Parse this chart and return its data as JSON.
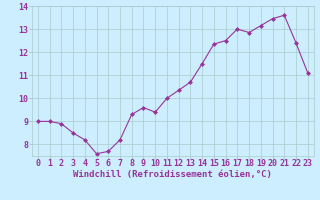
{
  "x": [
    0,
    1,
    2,
    3,
    4,
    5,
    6,
    7,
    8,
    9,
    10,
    11,
    12,
    13,
    14,
    15,
    16,
    17,
    18,
    19,
    20,
    21,
    22,
    23
  ],
  "y": [
    9.0,
    9.0,
    8.9,
    8.5,
    8.2,
    7.6,
    7.7,
    8.2,
    9.3,
    9.6,
    9.4,
    10.0,
    10.35,
    10.7,
    11.5,
    12.35,
    12.5,
    13.0,
    12.85,
    13.15,
    13.45,
    13.6,
    12.4,
    11.1
  ],
  "line_color": "#993399",
  "marker": "D",
  "marker_size": 2.0,
  "bg_color": "#cceeff",
  "grid_color": "#aacccc",
  "xlim": [
    -0.5,
    23.5
  ],
  "ylim": [
    7.5,
    14.0
  ],
  "yticks": [
    8,
    9,
    10,
    11,
    12,
    13,
    14
  ],
  "xticks": [
    0,
    1,
    2,
    3,
    4,
    5,
    6,
    7,
    8,
    9,
    10,
    11,
    12,
    13,
    14,
    15,
    16,
    17,
    18,
    19,
    20,
    21,
    22,
    23
  ],
  "xlabel": "Windchill (Refroidissement éolien,°C)",
  "xlabel_fontsize": 6.5,
  "tick_fontsize": 6.0,
  "tick_color": "#993399",
  "xlabel_color": "#993399"
}
